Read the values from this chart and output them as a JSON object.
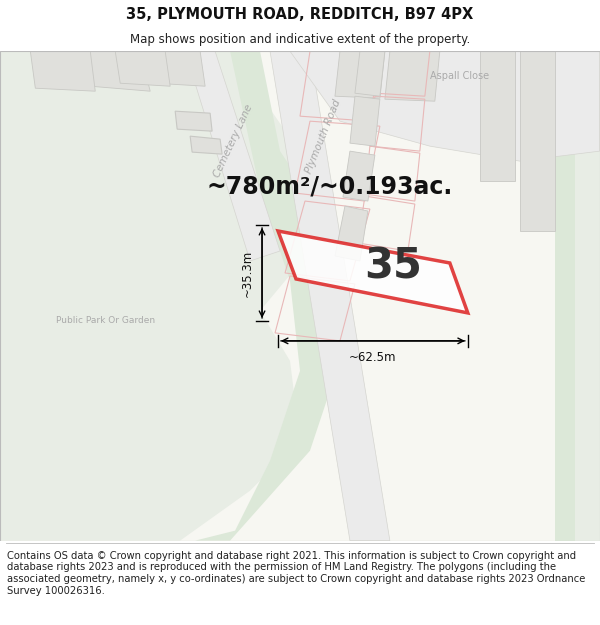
{
  "title": "35, PLYMOUTH ROAD, REDDITCH, B97 4PX",
  "subtitle": "Map shows position and indicative extent of the property.",
  "footer": "Contains OS data © Crown copyright and database right 2021. This information is subject to Crown copyright and database rights 2023 and is reproduced with the permission of HM Land Registry. The polygons (including the associated geometry, namely x, y co-ordinates) are subject to Crown copyright and database rights 2023 Ordnance Survey 100026316.",
  "area_text": "~780m²/~0.193ac.",
  "width_label": "~62.5m",
  "height_label": "~35.3m",
  "property_number": "35",
  "bg_color": "#f7f7f2",
  "green_color": "#e8ede5",
  "green_dark": "#dce8d8",
  "road_color": "#f0f0ec",
  "road_gray": "#d8d8d4",
  "building_fill": "#e0e0dc",
  "building_stroke": "#c8c8c4",
  "plot_stroke": "#e8b8b8",
  "highlight_stroke": "#dd2222",
  "highlight_lw": 2.5,
  "title_fontsize": 10.5,
  "subtitle_fontsize": 8.5,
  "footer_fontsize": 7.2,
  "area_fontsize": 17,
  "label_fontsize": 8.5,
  "number_fontsize": 30,
  "road_label_color": "#aaaaaa",
  "road_label_size": 7.5
}
